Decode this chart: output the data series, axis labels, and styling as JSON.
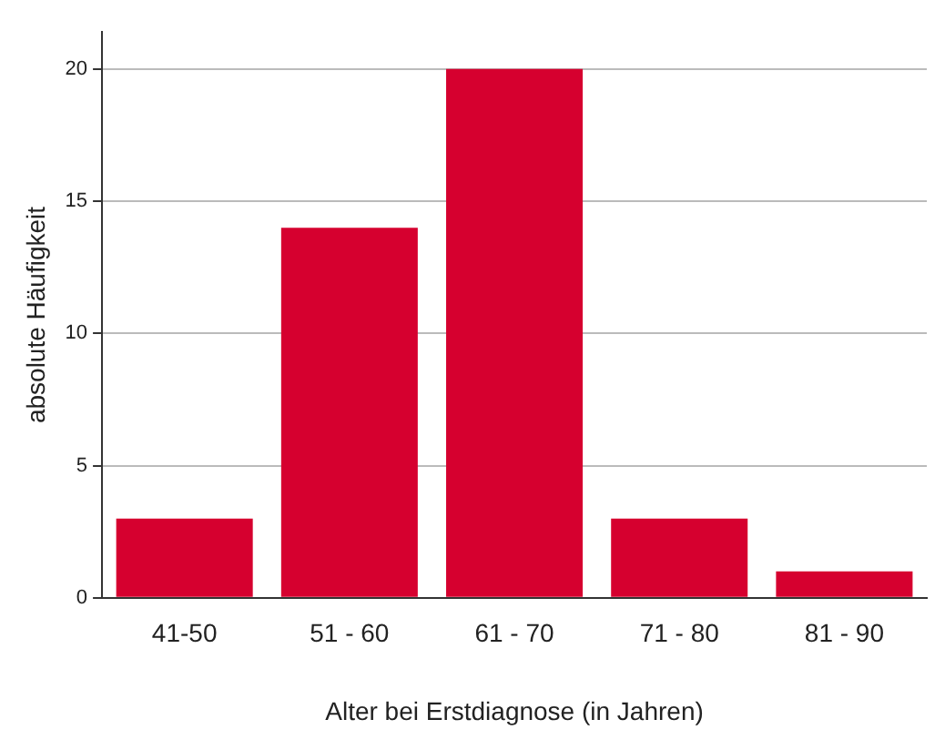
{
  "chart_data": {
    "type": "bar",
    "xlabel": "Alter bei Erstdiagnose (in Jahren)",
    "ylabel": "absolute Häufigkeit",
    "categories": [
      "41-50",
      "51 - 60",
      "61 - 70",
      "71 - 80",
      "81 - 90"
    ],
    "values": [
      3,
      14,
      20,
      3,
      1
    ],
    "color": "#d6002f",
    "ylim": [
      0,
      21.4
    ],
    "yticks": [
      0,
      5,
      10,
      15,
      20
    ],
    "grid": "y",
    "legend": false
  }
}
